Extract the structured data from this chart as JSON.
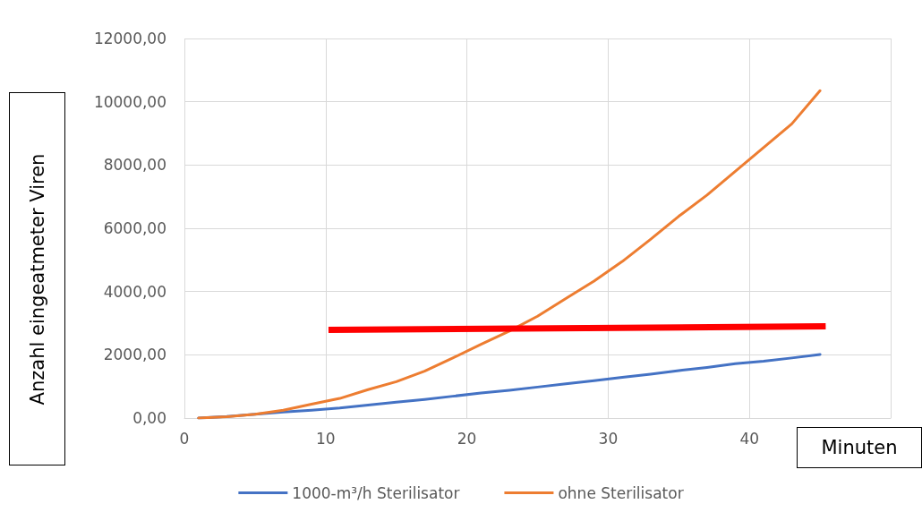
{
  "chart_data": {
    "type": "line",
    "xlabel": "Minuten",
    "ylabel": "Anzahl  eingeatmeter Viren",
    "xlim": [
      0,
      50
    ],
    "xticks": [
      0,
      10,
      20,
      30,
      40,
      {
        "value": 50,
        "label": null
      }
    ],
    "ylim": [
      0,
      12000
    ],
    "yticks": [
      {
        "value": 0,
        "label": "0,00"
      },
      {
        "value": 2000,
        "label": "2000,00"
      },
      {
        "value": 4000,
        "label": "4000,00"
      },
      {
        "value": 6000,
        "label": "6000,00"
      },
      {
        "value": 8000,
        "label": "8000,00"
      },
      {
        "value": 10000,
        "label": "10000,00"
      },
      {
        "value": 12000,
        "label": "12000,00"
      }
    ],
    "grid": true,
    "legend": "bottom",
    "marker": "none",
    "line_style": "solid",
    "x": [
      1,
      3,
      5,
      7,
      9,
      11,
      13,
      15,
      17,
      19,
      21,
      23,
      25,
      27,
      29,
      31,
      33,
      35,
      37,
      39,
      41,
      43,
      45
    ],
    "series": [
      {
        "name": "1000-m³/h Sterilisator",
        "color": "#4472c4",
        "values": [
          0,
          50,
          120,
          190,
          250,
          320,
          410,
          500,
          590,
          690,
          790,
          880,
          980,
          1080,
          1180,
          1290,
          1390,
          1500,
          1600,
          1720,
          1800,
          1900,
          2010
        ]
      },
      {
        "name": "ohne Sterilisator",
        "color": "#ed7d31",
        "values": [
          0,
          40,
          120,
          250,
          440,
          620,
          900,
          1150,
          1480,
          1900,
          2330,
          2750,
          3220,
          3780,
          4330,
          4950,
          5650,
          6380,
          7050,
          7800,
          8550,
          9300,
          10350
        ]
      },
      {
        "color": "#ff0000",
        "x": [
          10.2,
          45.4
        ],
        "values": [
          2790,
          2900
        ]
      }
    ]
  }
}
